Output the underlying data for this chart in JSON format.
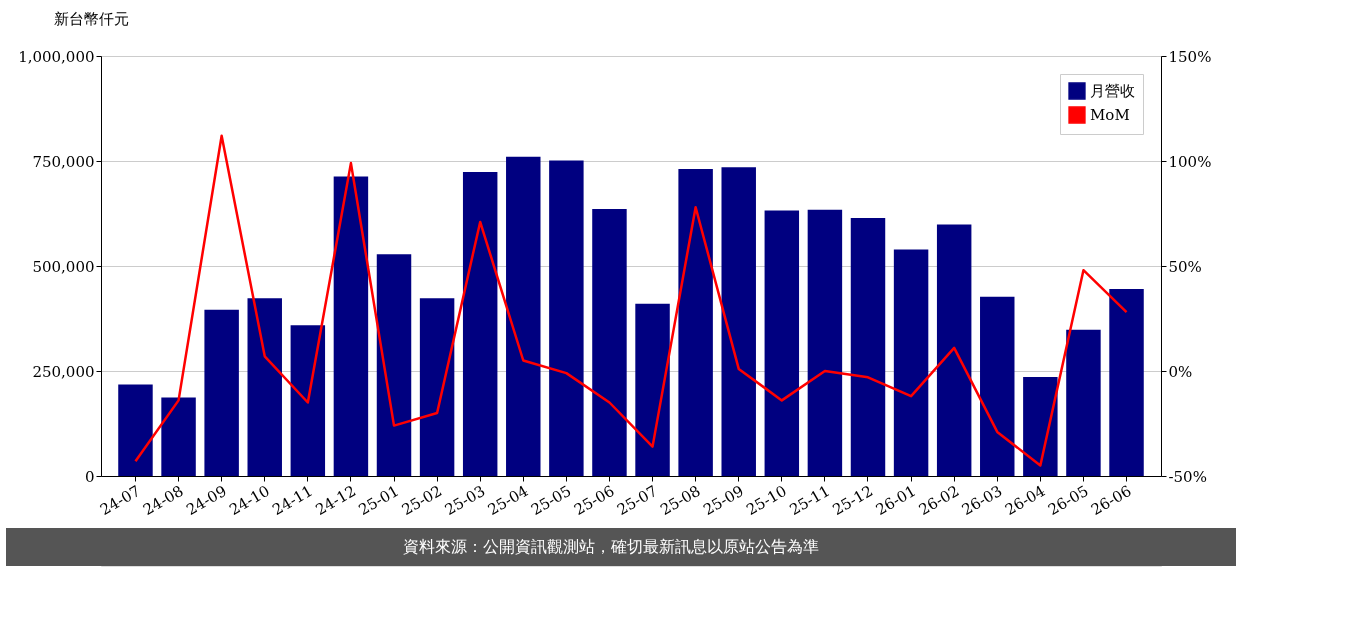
{
  "chart_data": {
    "type": "bar",
    "ylabel": "新台幣仟元",
    "categories": [
      "24-07",
      "24-08",
      "24-09",
      "24-10",
      "24-11",
      "24-12",
      "25-01",
      "25-02",
      "25-03",
      "25-04",
      "25-05",
      "25-06",
      "25-07",
      "25-08",
      "25-09",
      "25-10",
      "25-11",
      "25-12",
      "26-01",
      "26-02",
      "26-03",
      "26-04",
      "26-05",
      "26-06"
    ],
    "series": [
      {
        "name": "月營收",
        "color": "#000080",
        "values": [
          218000,
          187000,
          396000,
          423000,
          359000,
          713000,
          528000,
          423000,
          724000,
          760000,
          751000,
          636000,
          410000,
          731000,
          735000,
          632000,
          634000,
          614000,
          539000,
          599000,
          427000,
          236000,
          348000,
          445000
        ]
      },
      {
        "name": "MoM",
        "type": "line",
        "axis": "y2",
        "color": "#ff0000",
        "values": [
          -43,
          -14,
          112,
          7,
          -15,
          99,
          -26,
          -20,
          71,
          5,
          -1,
          -15,
          -36,
          78,
          1,
          -14,
          0,
          -3,
          -12,
          11,
          -29,
          -45,
          48,
          28
        ]
      }
    ],
    "ylim": [
      0,
      1000000
    ],
    "yticks": [
      0,
      {
        "value": 250000,
        "label": "250,000"
      },
      {
        "value": 500000,
        "label": "500,000"
      },
      {
        "value": 750000,
        "label": "750,000"
      },
      {
        "value": 1000000,
        "label": "1,000,000"
      }
    ],
    "y2lim": [
      -50,
      150
    ],
    "y2ticks": [
      {
        "value": -50,
        "label": "-50%"
      },
      {
        "value": 0,
        "label": "0%"
      },
      {
        "value": 50,
        "label": "50%"
      },
      {
        "value": 100,
        "label": "100%"
      },
      {
        "value": 150,
        "label": "150%"
      }
    ],
    "grid": "y",
    "legend": "top right",
    "annotations": [
      "資料來源：公開資訊觀測站，確切最新訊息以原站公告為準"
    ]
  }
}
